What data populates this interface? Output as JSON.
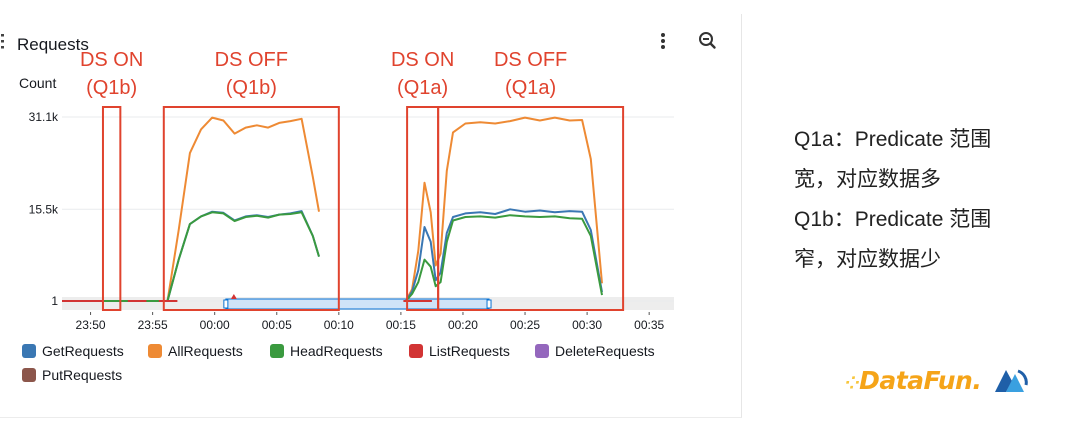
{
  "colors": {
    "GetRequests": "#3a77b3",
    "AllRequests": "#ee8a34",
    "HeadRequests": "#3a9a3f",
    "ListRequests": "#d23434",
    "DeleteRequests": "#9467bd",
    "PutRequests": "#8c564b",
    "annotation": "#e0432e",
    "brand": "#f5a418"
  },
  "chart_data": {
    "type": "line",
    "title": "Requests",
    "ylabel": "Count",
    "y_ticks": [
      {
        "value": 31100,
        "label": "31.1k"
      },
      {
        "value": 15500,
        "label": "15.5k"
      },
      {
        "value": 1,
        "label": "1"
      }
    ],
    "ylim": [
      1,
      31100
    ],
    "x_tick_labels": [
      "23:50",
      "23:55",
      "00:00",
      "00:05",
      "00:10",
      "00:15",
      "00:20",
      "00:25",
      "00:30",
      "00:35"
    ],
    "x_ticks_min": [
      -10,
      -5,
      0,
      5,
      10,
      15,
      20,
      25,
      30,
      35
    ],
    "xlim": [
      -12.3,
      37
    ],
    "legend_position": "bottom",
    "series": [
      {
        "name": "AllRequests",
        "segments": [
          [
            [
              -4.7,
              1
            ],
            [
              -3.8,
              1
            ],
            [
              -2.9,
              12000
            ],
            [
              -2.0,
              25000
            ],
            [
              -1.1,
              29000
            ],
            [
              -0.2,
              31000
            ],
            [
              0.7,
              30500
            ],
            [
              1.6,
              28300
            ],
            [
              2.5,
              29300
            ],
            [
              3.4,
              29700
            ],
            [
              4.3,
              29300
            ],
            [
              5.2,
              30100
            ],
            [
              6.1,
              30400
            ],
            [
              7.0,
              30800
            ],
            [
              7.9,
              21000
            ],
            [
              8.4,
              15100
            ]
          ],
          [
            [
              15.4,
              1
            ],
            [
              15.9,
              2000
            ],
            [
              16.4,
              8500
            ],
            [
              16.9,
              20000
            ],
            [
              17.4,
              15000
            ],
            [
              17.8,
              6000
            ],
            [
              18.2,
              8000
            ],
            [
              18.7,
              22000
            ],
            [
              19.2,
              28500
            ],
            [
              20.2,
              30000
            ],
            [
              21.4,
              30200
            ],
            [
              22.6,
              30000
            ],
            [
              23.8,
              30400
            ],
            [
              25.0,
              31000
            ],
            [
              26.2,
              30500
            ],
            [
              27.4,
              31000
            ],
            [
              28.6,
              30500
            ],
            [
              29.6,
              30600
            ],
            [
              30.3,
              24000
            ],
            [
              31.2,
              3000
            ]
          ]
        ]
      },
      {
        "name": "GetRequests",
        "segments": [
          [
            [
              -4.7,
              1
            ],
            [
              -3.8,
              1
            ],
            [
              -2.9,
              7000
            ],
            [
              -2.0,
              13000
            ],
            [
              -1.1,
              14300
            ],
            [
              -0.2,
              15100
            ],
            [
              0.7,
              14900
            ],
            [
              1.6,
              13600
            ],
            [
              2.5,
              14300
            ],
            [
              3.4,
              14500
            ],
            [
              4.3,
              14200
            ],
            [
              5.2,
              14600
            ],
            [
              6.1,
              14800
            ],
            [
              7.0,
              15200
            ],
            [
              7.9,
              11000
            ],
            [
              8.4,
              7500
            ]
          ],
          [
            [
              15.4,
              1
            ],
            [
              15.9,
              1600
            ],
            [
              16.4,
              5200
            ],
            [
              16.9,
              12500
            ],
            [
              17.4,
              10000
            ],
            [
              17.8,
              3500
            ],
            [
              18.2,
              4800
            ],
            [
              18.7,
              11500
            ],
            [
              19.2,
              14200
            ],
            [
              20.2,
              14800
            ],
            [
              21.4,
              15000
            ],
            [
              22.6,
              14700
            ],
            [
              23.8,
              15500
            ],
            [
              25.0,
              15100
            ],
            [
              26.2,
              15300
            ],
            [
              27.4,
              15000
            ],
            [
              28.6,
              15200
            ],
            [
              29.6,
              15100
            ],
            [
              30.3,
              12000
            ],
            [
              31.2,
              1500
            ]
          ]
        ]
      },
      {
        "name": "HeadRequests",
        "segments": [
          [
            [
              -12.3,
              1
            ],
            [
              -4.3,
              1
            ],
            [
              -3.8,
              1
            ],
            [
              -2.9,
              7000
            ],
            [
              -2.0,
              13000
            ],
            [
              -1.1,
              14300
            ],
            [
              -0.2,
              15000
            ],
            [
              0.7,
              14800
            ],
            [
              1.6,
              13500
            ],
            [
              2.5,
              14200
            ],
            [
              3.4,
              14400
            ],
            [
              4.3,
              14100
            ],
            [
              5.2,
              14600
            ],
            [
              6.1,
              14700
            ],
            [
              7.0,
              15000
            ],
            [
              7.9,
              11000
            ],
            [
              8.4,
              7500
            ]
          ],
          [
            [
              15.4,
              1
            ],
            [
              15.9,
              1200
            ],
            [
              16.4,
              3200
            ],
            [
              16.9,
              7000
            ],
            [
              17.4,
              5800
            ],
            [
              17.8,
              2500
            ],
            [
              18.2,
              3200
            ],
            [
              18.7,
              10000
            ],
            [
              19.2,
              13600
            ],
            [
              20.2,
              14200
            ],
            [
              21.4,
              14300
            ],
            [
              22.6,
              14100
            ],
            [
              23.8,
              14500
            ],
            [
              25.0,
              14300
            ],
            [
              26.2,
              14200
            ],
            [
              27.4,
              14300
            ],
            [
              28.6,
              14000
            ],
            [
              29.6,
              13900
            ],
            [
              30.3,
              11000
            ],
            [
              31.2,
              1000
            ]
          ]
        ]
      },
      {
        "name": "ListRequests",
        "segments": [
          [
            [
              -12.3,
              1
            ],
            [
              -9.0,
              1
            ]
          ],
          [
            [
              -7.0,
              1
            ],
            [
              -5.5,
              1
            ]
          ],
          [
            [
              -4.5,
              1
            ],
            [
              -3.0,
              1
            ]
          ],
          [
            [
              15.2,
              1
            ],
            [
              17.5,
              1
            ]
          ]
        ]
      },
      {
        "name": "DeleteRequests",
        "segments": []
      },
      {
        "name": "PutRequests",
        "segments": []
      }
    ]
  },
  "legend": [
    {
      "name": "GetRequests",
      "color": "#3a77b3"
    },
    {
      "name": "AllRequests",
      "color": "#ee8a34"
    },
    {
      "name": "HeadRequests",
      "color": "#3a9a3f"
    },
    {
      "name": "ListRequests",
      "color": "#d23434"
    },
    {
      "name": "DeleteRequests",
      "color": "#9467bd"
    },
    {
      "name": "PutRequests",
      "color": "#8c564b"
    }
  ],
  "annotations": [
    {
      "line1": "DS ON",
      "line2": "(Q1b)",
      "box": [
        -9.0,
        -7.6
      ]
    },
    {
      "line1": "DS OFF",
      "line2": "(Q1b)",
      "box": [
        -4.1,
        10.0
      ]
    },
    {
      "line1": "DS ON",
      "line2": "(Q1a)",
      "box": [
        15.5,
        18.0
      ]
    },
    {
      "line1": "DS OFF",
      "line2": "(Q1a)",
      "box": [
        18.0,
        32.9
      ]
    }
  ],
  "time_range_selector": {
    "start": 0.9,
    "end": 22.1
  },
  "icons": [
    "more-vertical-icon",
    "zoom-out-icon",
    "drag-handle-icon"
  ],
  "note_lines": [
    "Q1a：Predicate 范围",
    "宽，对应数据多",
    "Q1b：Predicate 范围",
    "窄，对应数据少"
  ],
  "brand": {
    "name": "DataFun."
  }
}
